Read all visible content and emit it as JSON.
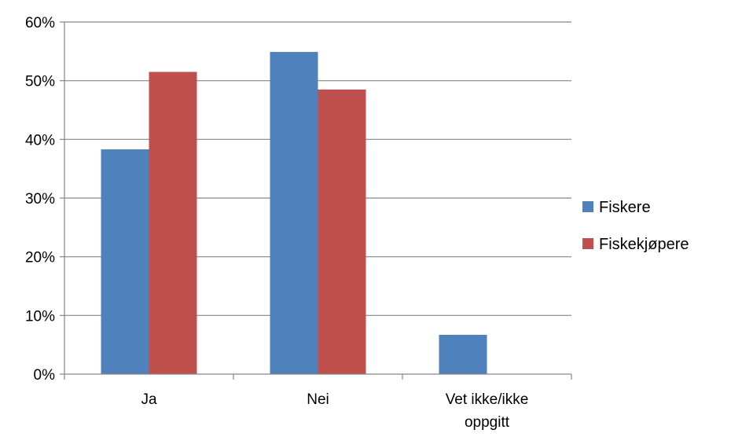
{
  "chart_data": {
    "type": "bar",
    "categories": [
      "Ja",
      "Nei",
      "Vet ikke/ikke oppgitt"
    ],
    "category_lines": [
      [
        "Ja"
      ],
      [
        "Nei"
      ],
      [
        "Vet ikke/ikke",
        "oppgitt"
      ]
    ],
    "series": [
      {
        "name": "Fiskere",
        "values": [
          38.3,
          54.9,
          6.7
        ],
        "color": "#4f81bd"
      },
      {
        "name": "Fiskekjøpere",
        "values": [
          51.5,
          48.5,
          0
        ],
        "color": "#c0504d"
      }
    ],
    "y_ticks": [
      "0%",
      "10%",
      "20%",
      "30%",
      "40%",
      "50%",
      "60%"
    ],
    "ylim": [
      0,
      60
    ],
    "grid": true,
    "legend_position": "right",
    "title": "",
    "xlabel": "",
    "ylabel": ""
  }
}
